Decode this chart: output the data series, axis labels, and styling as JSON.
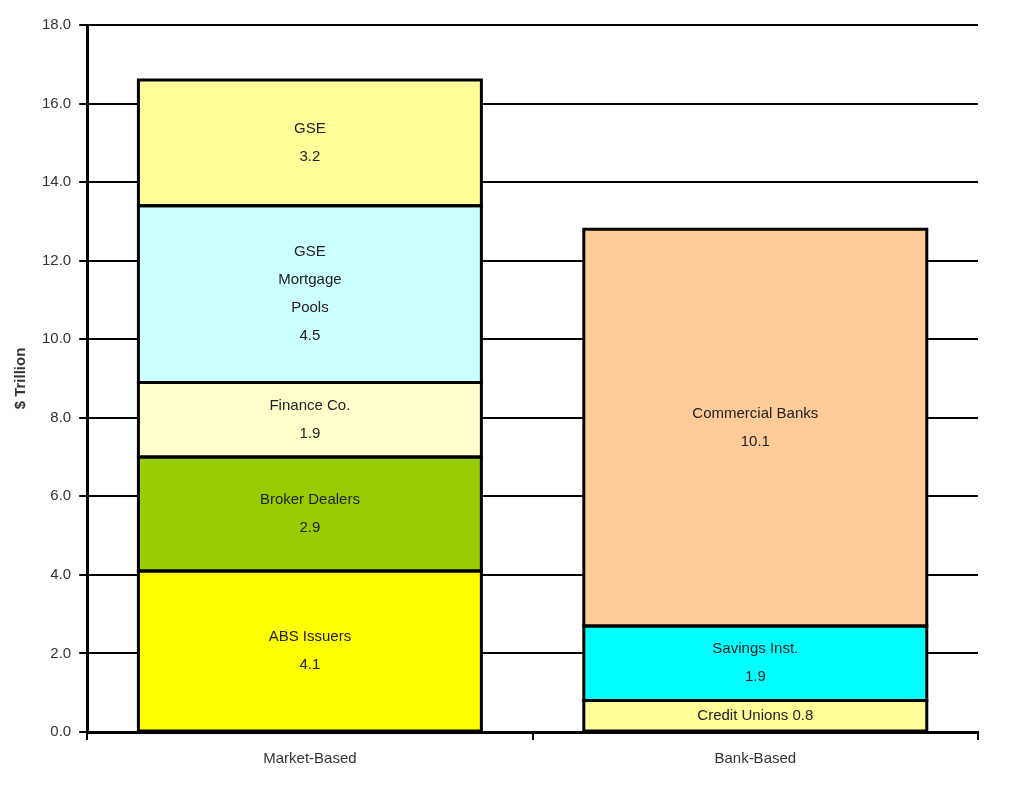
{
  "chart_data": {
    "type": "bar",
    "stacked": true,
    "ylabel": "$ Trillion",
    "categories": [
      "Market-Based",
      "Bank-Based"
    ],
    "ylim": [
      0,
      18
    ],
    "yticks": [
      {
        "value": 0,
        "label": "0.0"
      },
      {
        "value": 2,
        "label": "2.0"
      },
      {
        "value": 4,
        "label": "4.0"
      },
      {
        "value": 6,
        "label": "6.0"
      },
      {
        "value": 8,
        "label": "8.0"
      },
      {
        "value": 10,
        "label": "10.0"
      },
      {
        "value": 12,
        "label": "12.0"
      },
      {
        "value": 14,
        "label": "14.0"
      },
      {
        "value": 16,
        "label": "16.0"
      },
      {
        "value": 18,
        "label": "18.0"
      }
    ],
    "grid": "y",
    "legend": false,
    "data_labels": true,
    "series": [
      {
        "name": "ABS Issuers",
        "color": "#ffff00",
        "values": [
          4.1,
          null
        ]
      },
      {
        "name": "Broker Dealers",
        "color": "#99cc00",
        "values": [
          2.9,
          null
        ]
      },
      {
        "name": "Finance Co.",
        "color": "#ffffcc",
        "values": [
          1.9,
          null
        ]
      },
      {
        "name": "GSE Mortgage Pools",
        "color": "#ccffff",
        "values": [
          4.5,
          null
        ]
      },
      {
        "name": "GSE",
        "color": "#ffff99",
        "values": [
          3.2,
          null
        ]
      },
      {
        "name": "Credit Unions",
        "color": "#ffff99",
        "values": [
          null,
          0.8
        ]
      },
      {
        "name": "Savings Inst.",
        "color": "#00ffff",
        "values": [
          null,
          1.9
        ]
      },
      {
        "name": "Commercial Banks",
        "color": "#ffcc99",
        "values": [
          null,
          10.1
        ]
      }
    ]
  }
}
